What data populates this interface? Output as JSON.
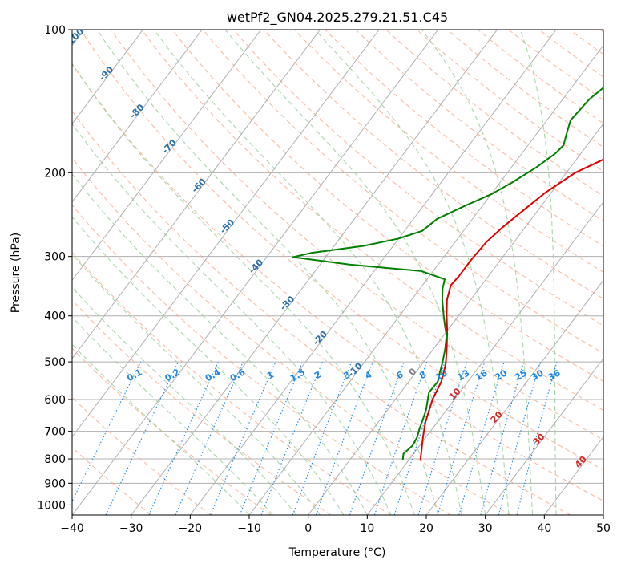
{
  "chart_data": {
    "type": "line",
    "title": "wetPf2_GN04.2025.279.21.51.C45",
    "xlabel": "Temperature (°C)",
    "ylabel": "Pressure (hPa)",
    "xlim": [
      -40,
      50
    ],
    "ylim": [
      1050,
      100
    ],
    "y_scale": "log",
    "grid": true,
    "x_ticks": [
      -40,
      -30,
      -20,
      -10,
      0,
      10,
      20,
      30,
      40,
      50
    ],
    "y_ticks": [
      1000,
      900,
      800,
      700,
      600,
      500,
      400,
      300,
      200,
      100
    ],
    "series": [
      {
        "color": "#e00000",
        "points": [
          [
            12,
            805
          ],
          [
            11,
            770
          ],
          [
            9.5,
            720
          ],
          [
            8,
            670
          ],
          [
            6.3,
            600
          ],
          [
            5.5,
            550
          ],
          [
            4,
            505
          ],
          [
            2,
            465
          ],
          [
            0,
            430
          ],
          [
            -2,
            400
          ],
          [
            -4,
            370
          ],
          [
            -5.2,
            345
          ],
          [
            -5,
            330
          ],
          [
            -5,
            305
          ],
          [
            -4.7,
            280
          ],
          [
            -3.8,
            260
          ],
          [
            -2.5,
            240
          ],
          [
            -1,
            220
          ],
          [
            1.5,
            200
          ],
          [
            6,
            182
          ],
          [
            11,
            170
          ],
          [
            15,
            160
          ],
          [
            18,
            145
          ],
          [
            22,
            130
          ],
          [
            25,
            118
          ],
          [
            27,
            110
          ],
          [
            29,
            100
          ]
        ]
      },
      {
        "color": "#008000",
        "points": [
          [
            9,
            805
          ],
          [
            8.3,
            780
          ],
          [
            8.8,
            750
          ],
          [
            8.5,
            720
          ],
          [
            7.8,
            690
          ],
          [
            7.2,
            660
          ],
          [
            6.5,
            630
          ],
          [
            5.5,
            600
          ],
          [
            4.8,
            580
          ],
          [
            4.9,
            550
          ],
          [
            4.2,
            530
          ],
          [
            3.2,
            500
          ],
          [
            2,
            470
          ],
          [
            0.5,
            440
          ],
          [
            -1,
            420
          ],
          [
            -2.5,
            400
          ],
          [
            -4.8,
            370
          ],
          [
            -6.2,
            350
          ],
          [
            -7,
            335
          ],
          [
            -12,
            322
          ],
          [
            -25,
            312
          ],
          [
            -35.5,
            301
          ],
          [
            -33,
            295
          ],
          [
            -25,
            285
          ],
          [
            -20,
            275
          ],
          [
            -17,
            265
          ],
          [
            -16,
            250
          ],
          [
            -13,
            235
          ],
          [
            -10,
            222
          ],
          [
            -8,
            210
          ],
          [
            -5.8,
            195
          ],
          [
            -4.3,
            182
          ],
          [
            -4,
            175
          ],
          [
            -5,
            165
          ],
          [
            -6,
            155
          ],
          [
            -5.5,
            140
          ],
          [
            -4.3,
            130
          ],
          [
            -3.5,
            120
          ],
          [
            -2,
            110
          ],
          [
            0,
            100
          ]
        ]
      }
    ],
    "isotherm_spacing": 10,
    "dry_adiabat_labels": [
      "-100",
      "-90",
      "-80",
      "-70",
      "-60",
      "-50",
      "-40",
      "-30",
      "-20",
      "-10"
    ],
    "mixing_ratio_labels": [
      "0.1",
      "0.2",
      "0.4",
      "0.6",
      "1",
      "1.5",
      "2",
      "3",
      "4",
      "6",
      "8",
      "10",
      "13",
      "16",
      "20",
      "25",
      "30",
      "36"
    ],
    "moist_adiabat_labels": [
      "0",
      "10",
      "20",
      "30",
      "40"
    ],
    "colors": {
      "temperature": "#e00000",
      "dewpoint": "#008000",
      "isotherm": "#b0b0b0",
      "dry_adiabat": "#f4a582",
      "moist_adiabat": "#9ccf9c",
      "mixing_ratio": "#1e88e5",
      "dry_label": "#2c6fa8",
      "moist_label": "#d62728",
      "zero_label": "#808080"
    }
  }
}
